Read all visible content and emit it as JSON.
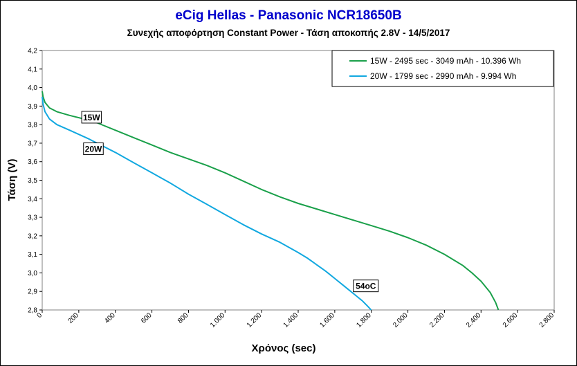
{
  "chart_data": {
    "type": "line",
    "title": "eCig Hellas  - Panasonic NCR18650B",
    "subtitle": "Συνεχής αποφόρτηση Constant Power - Τάση αποκοπής 2.8V - 14/5/2017",
    "xlabel": "Χρόνος (sec)",
    "ylabel": "Τάση (V)",
    "xlim": [
      0,
      2800
    ],
    "ylim": [
      2.8,
      4.2
    ],
    "x_ticks": [
      "0",
      "200",
      "400",
      "600",
      "800",
      "1.000",
      "1.200",
      "1.400",
      "1.600",
      "1.800",
      "2.000",
      "2.200",
      "2.400",
      "2.600",
      "2.800"
    ],
    "y_ticks": [
      "2,8",
      "2,9",
      "3,0",
      "3,1",
      "3,2",
      "3,3",
      "3,4",
      "3,5",
      "3,6",
      "3,7",
      "3,8",
      "3,9",
      "4,0",
      "4,1",
      "4,2"
    ],
    "grid": false,
    "legend_position": "top-right",
    "series": [
      {
        "name": "15W - 2495 sec - 3049 mAh - 10.396 Wh",
        "color": "#1aa04a",
        "x": [
          0,
          5,
          15,
          40,
          80,
          150,
          250,
          300,
          400,
          500,
          600,
          700,
          800,
          900,
          1000,
          1100,
          1200,
          1300,
          1400,
          1500,
          1600,
          1700,
          1800,
          1900,
          2000,
          2100,
          2200,
          2300,
          2350,
          2400,
          2450,
          2480,
          2495
        ],
        "y": [
          3.98,
          3.95,
          3.92,
          3.89,
          3.87,
          3.85,
          3.825,
          3.81,
          3.77,
          3.73,
          3.69,
          3.65,
          3.615,
          3.58,
          3.54,
          3.495,
          3.45,
          3.41,
          3.375,
          3.345,
          3.315,
          3.285,
          3.255,
          3.225,
          3.19,
          3.15,
          3.1,
          3.04,
          3.0,
          2.955,
          2.895,
          2.84,
          2.8
        ]
      },
      {
        "name": "20W - 1799 sec - 2990 mAh - 9.994 Wh",
        "color": "#11a8e0",
        "x": [
          0,
          5,
          15,
          40,
          80,
          150,
          250,
          300,
          400,
          500,
          600,
          700,
          800,
          900,
          1000,
          1100,
          1200,
          1300,
          1400,
          1450,
          1500,
          1550,
          1600,
          1650,
          1700,
          1750,
          1780,
          1799
        ],
        "y": [
          3.95,
          3.91,
          3.87,
          3.83,
          3.8,
          3.77,
          3.725,
          3.7,
          3.65,
          3.595,
          3.54,
          3.485,
          3.425,
          3.37,
          3.315,
          3.26,
          3.21,
          3.165,
          3.11,
          3.08,
          3.045,
          3.01,
          2.97,
          2.93,
          2.89,
          2.85,
          2.82,
          2.8
        ]
      }
    ],
    "annotations": [
      {
        "text": "15W",
        "x": 270,
        "y": 3.84
      },
      {
        "text": "20W",
        "x": 280,
        "y": 3.67
      },
      {
        "text": "54oC",
        "x": 1770,
        "y": 2.93
      }
    ]
  }
}
